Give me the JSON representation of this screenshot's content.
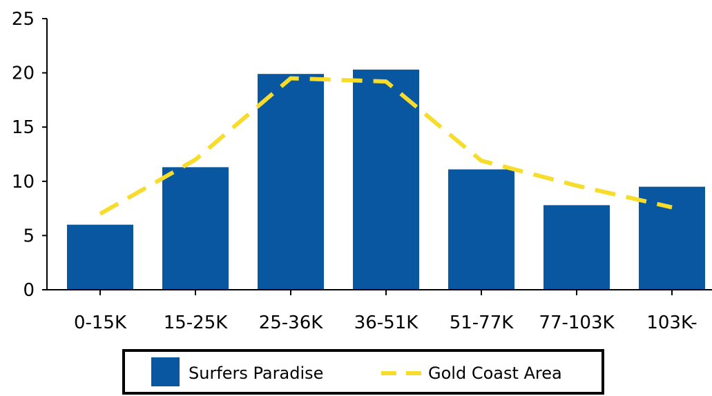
{
  "chart_data": {
    "type": "bar",
    "title": "",
    "xlabel": "",
    "ylabel": "",
    "categories": [
      "0-15K",
      "15-25K",
      "25-36K",
      "36-51K",
      "51-77K",
      "77-103K",
      "103K-"
    ],
    "ylim": [
      0,
      25
    ],
    "yticks": [
      "0",
      "5",
      "10",
      "15",
      "20",
      "25"
    ],
    "series": [
      {
        "name": "Surfers Paradise",
        "kind": "bar",
        "values": [
          6,
          11.3,
          19.9,
          20.3,
          11.1,
          7.8,
          9.5
        ]
      },
      {
        "name": "Gold Coast Area",
        "kind": "line",
        "style": "dashed",
        "values": [
          7.0,
          12.0,
          19.5,
          19.2,
          11.9,
          9.6,
          7.6
        ]
      }
    ],
    "grid": false,
    "legend_placement": "bottom"
  },
  "colors": {
    "bar": "#0a57a1",
    "line": "#f7dc2b",
    "axis": "#000000"
  }
}
